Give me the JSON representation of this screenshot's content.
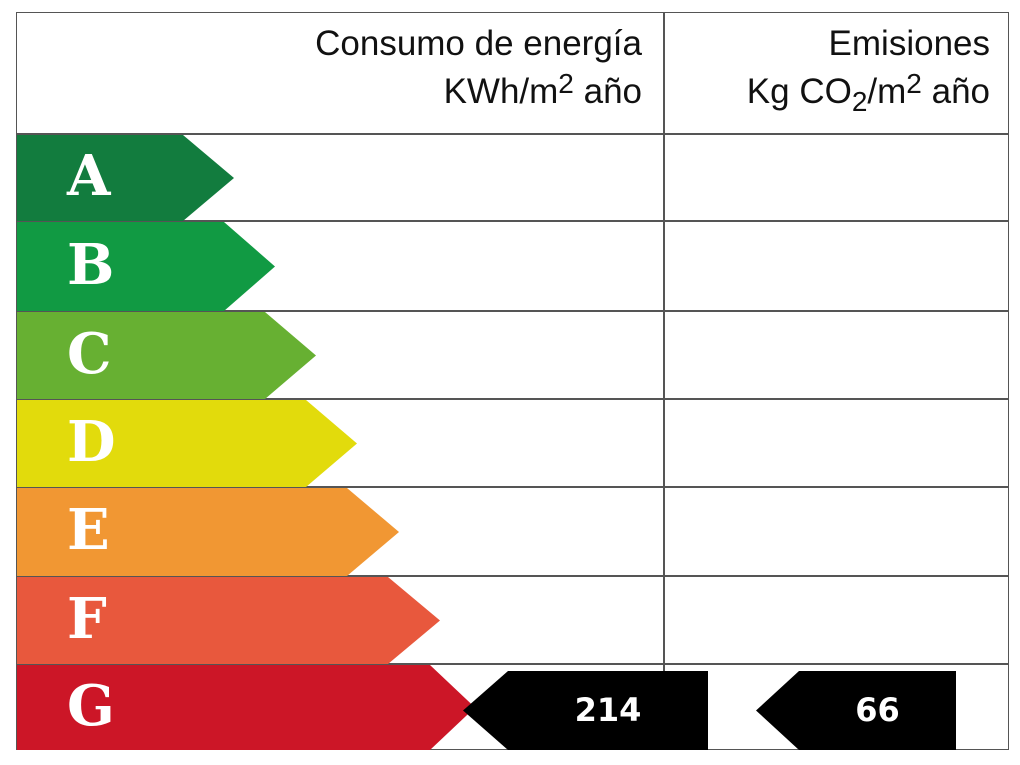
{
  "header": {
    "energy_title": "Consumo de energía",
    "energy_unit_pre": "KWh/m",
    "energy_unit_sup": "2",
    "energy_unit_post": " año",
    "emissions_title": "Emisiones",
    "emissions_unit_pre": "Kg CO",
    "emissions_unit_sub": "2",
    "emissions_unit_mid": "/m",
    "emissions_unit_sup": "2",
    "emissions_unit_post": " año"
  },
  "ratings": [
    {
      "letter": "A",
      "color": "#127c3e"
    },
    {
      "letter": "B",
      "color": "#119a43"
    },
    {
      "letter": "C",
      "color": "#67b032"
    },
    {
      "letter": "D",
      "color": "#e2db0c"
    },
    {
      "letter": "E",
      "color": "#f19733"
    },
    {
      "letter": "F",
      "color": "#e8583d"
    },
    {
      "letter": "G",
      "color": "#cc1627"
    }
  ],
  "result": {
    "energy_value": "214",
    "energy_rating": "G",
    "emissions_value": "66",
    "emissions_rating": "G",
    "marker_color": "#000000"
  },
  "chart_data": {
    "type": "table",
    "title": "Energy efficiency label",
    "columns": [
      "Consumo de energía KWh/m² año",
      "Emisiones Kg CO₂/m² año"
    ],
    "categories": [
      "A",
      "B",
      "C",
      "D",
      "E",
      "F",
      "G"
    ],
    "series": [
      {
        "name": "Consumo de energía (KWh/m² año)",
        "rating": "G",
        "value": 214
      },
      {
        "name": "Emisiones (Kg CO₂/m² año)",
        "rating": "G",
        "value": 66
      }
    ]
  }
}
